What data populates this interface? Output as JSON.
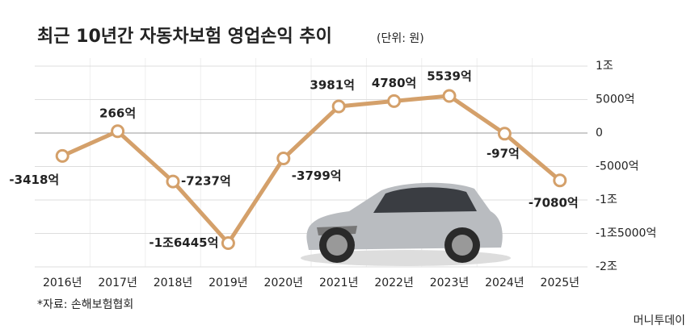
{
  "chart_data": {
    "type": "line",
    "title": "최근 10년간 자동차보험 영업손익 추이",
    "subtitle": "(단위: 원)",
    "categories": [
      "2016년",
      "2017년",
      "2018년",
      "2019년",
      "2020년",
      "2021년",
      "2022년",
      "2023년",
      "2024년",
      "2025년"
    ],
    "series": [
      {
        "color": "#d4a06a",
        "values": [
          -3418,
          266,
          -7237,
          -16445,
          -3799,
          3981,
          4780,
          5539,
          -97,
          -7080
        ],
        "value_labels": [
          "-3418억",
          "266억",
          "-7237억",
          "-1조6445억",
          "-3799억",
          "3981억",
          "4780억",
          "5539억",
          "-97억",
          "-7080억"
        ]
      }
    ],
    "ylim": [
      -20000,
      10000
    ],
    "yticks": [
      {
        "value": -20000,
        "label": "-2조"
      },
      {
        "value": -15000,
        "label": "-1조5000억"
      },
      {
        "value": -10000,
        "label": "-1조"
      },
      {
        "value": -5000,
        "label": "-5000억"
      },
      0,
      {
        "value": 5000,
        "label": "5000억"
      },
      {
        "value": 10000,
        "label": "1조"
      }
    ],
    "grid": true,
    "source": "*자료: 손해보험협회",
    "watermark": "머니투데이"
  }
}
